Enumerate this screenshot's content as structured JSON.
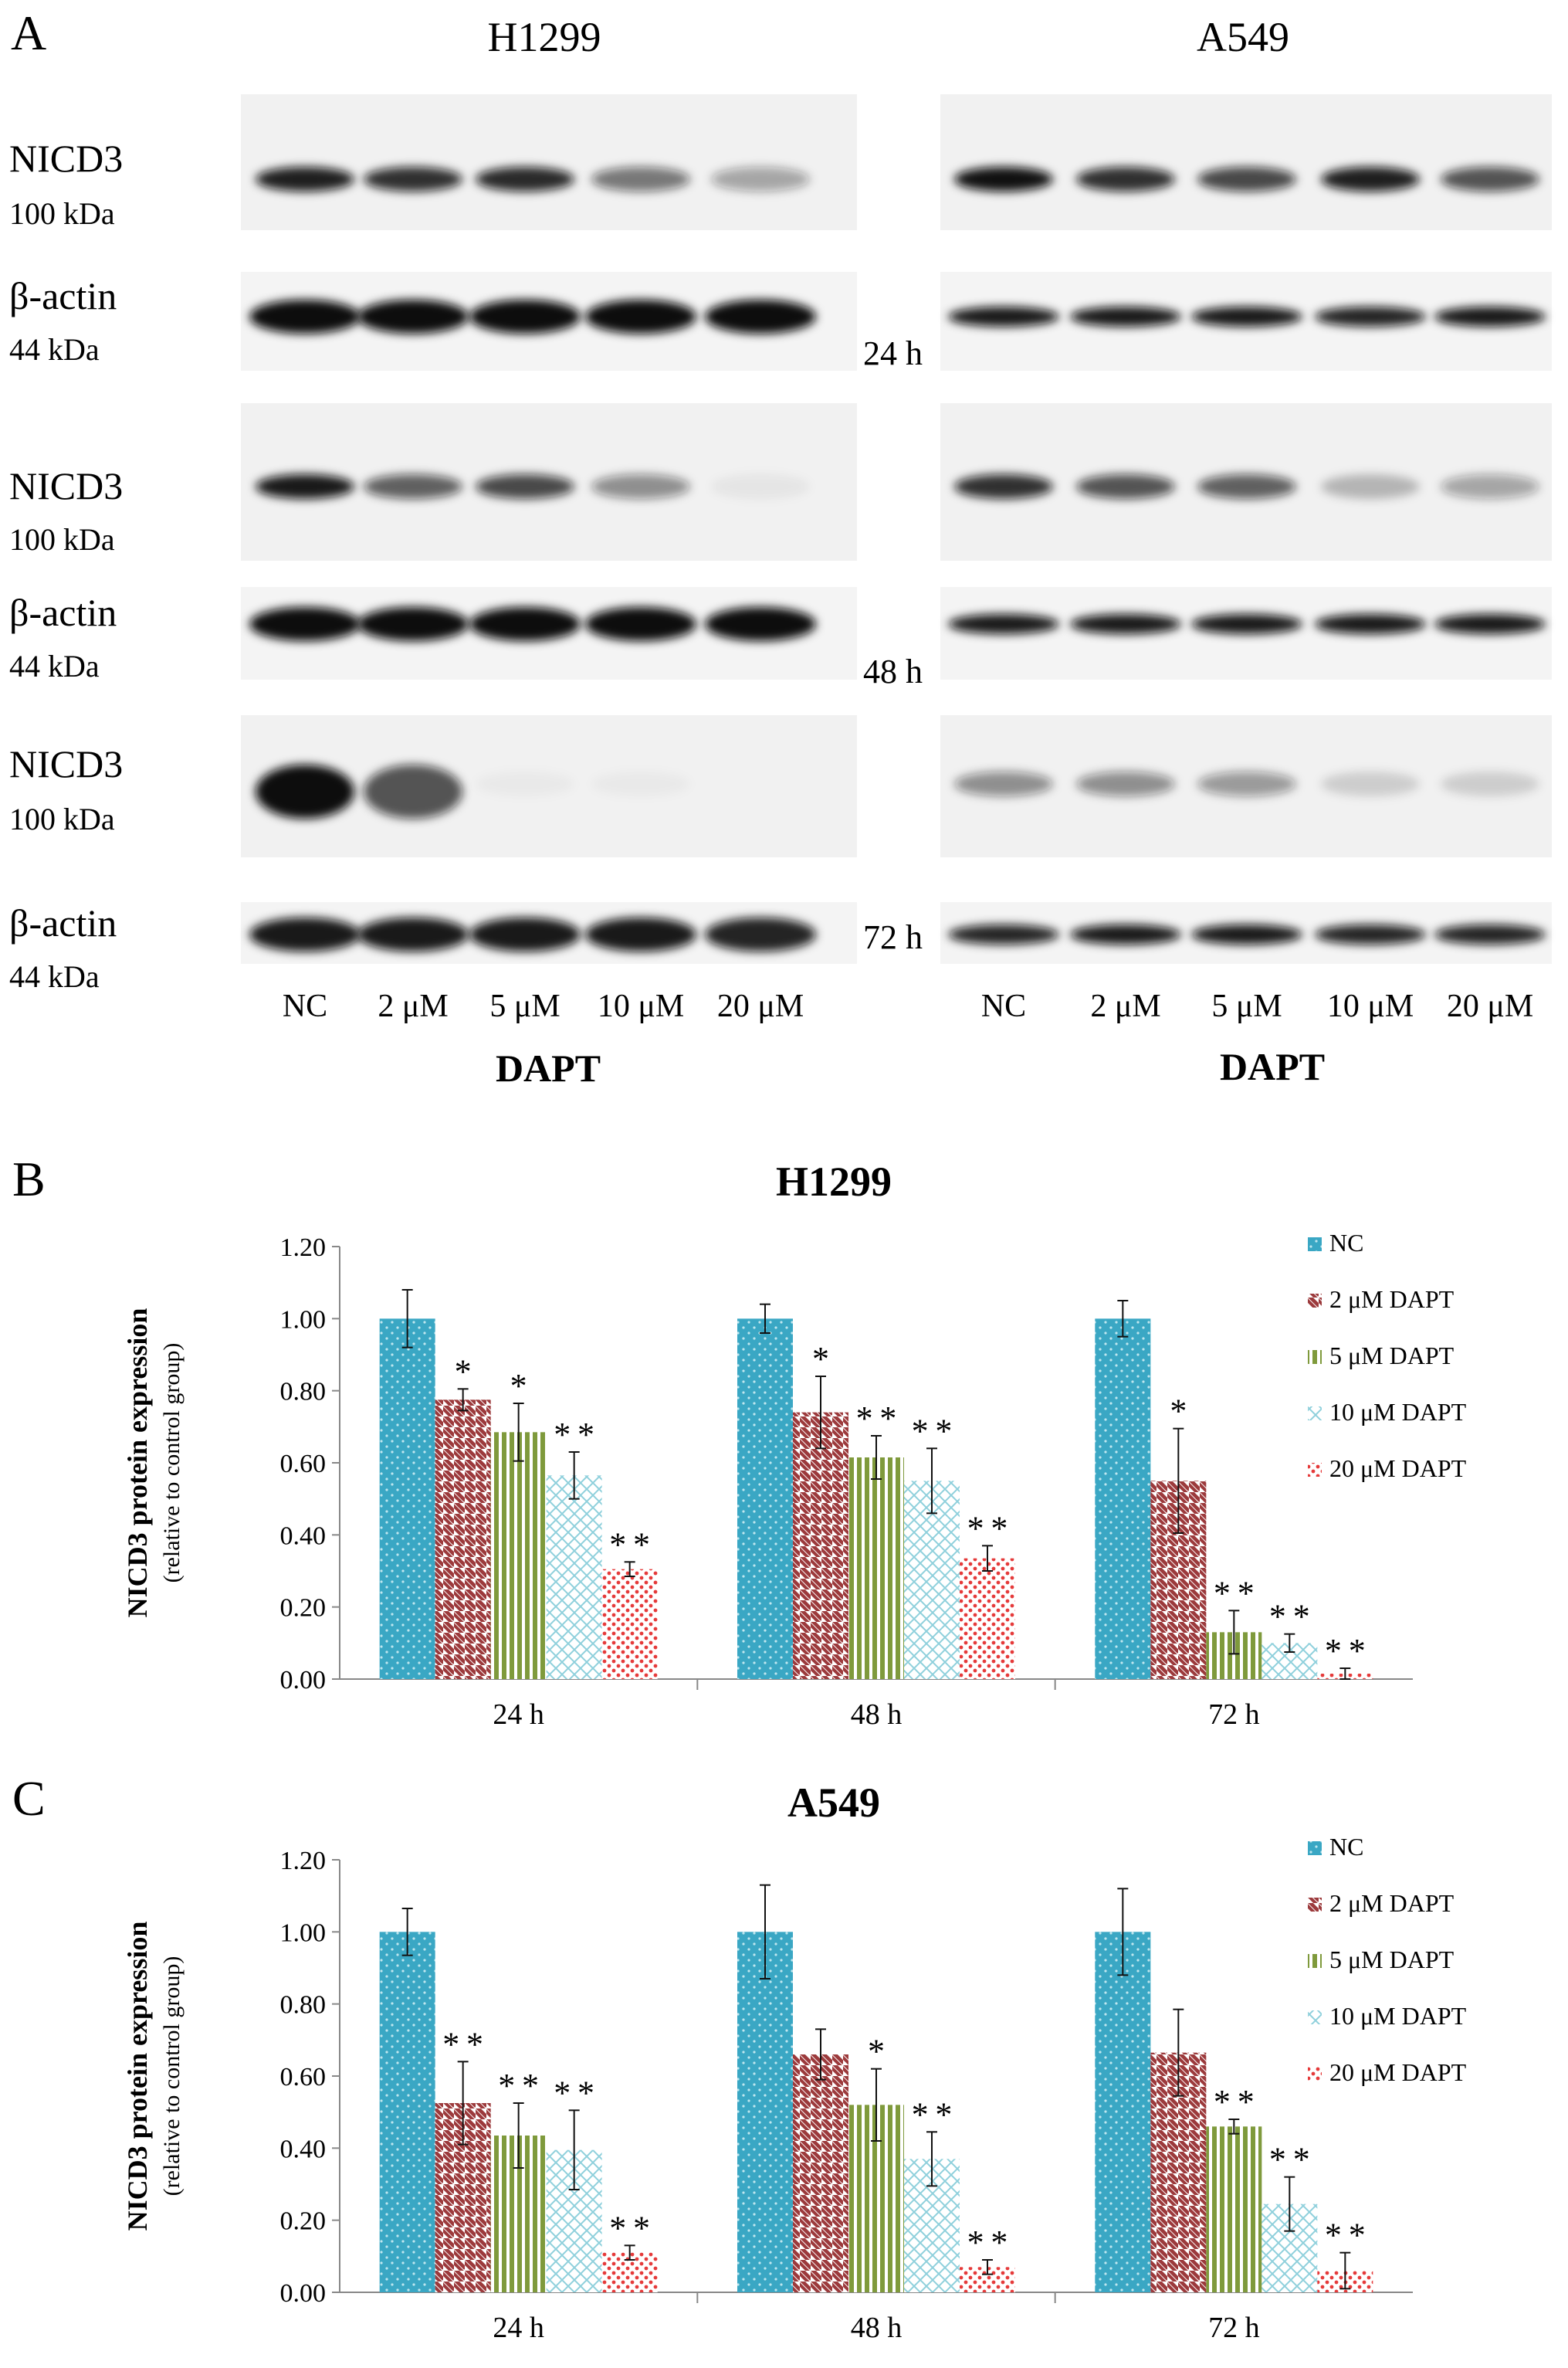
{
  "panel_a": {
    "letter": "A",
    "cell_lines": [
      "H1299",
      "A549"
    ],
    "rows": [
      {
        "time": "24 h",
        "target": "NICD3",
        "target_kda": "100 kDa",
        "control": "β-actin",
        "control_kda": "44 kDa"
      },
      {
        "time": "48 h",
        "target": "NICD3",
        "target_kda": "100 kDa",
        "control": "β-actin",
        "control_kda": "44 kDa"
      },
      {
        "time": "72 h",
        "target": "NICD3",
        "target_kda": "100 kDa",
        "control": "β-actin",
        "control_kda": "44 kDa"
      }
    ],
    "lanes": [
      "NC",
      "2 μM",
      "5 μM",
      "10 μM",
      "20 μM"
    ],
    "xtitle": "DAPT",
    "band_intensity": {
      "H1299": {
        "nicd3": [
          [
            0.92,
            0.85,
            0.88,
            0.55,
            0.35
          ],
          [
            0.95,
            0.65,
            0.75,
            0.45,
            0.05
          ],
          [
            1.0,
            0.7,
            0.03,
            0.03,
            0.0
          ]
        ],
        "actin": [
          [
            1.0,
            1.0,
            1.0,
            1.0,
            1.0
          ],
          [
            1.0,
            1.0,
            1.0,
            1.0,
            1.0
          ],
          [
            0.95,
            0.95,
            0.95,
            0.95,
            0.9
          ]
        ]
      },
      "A549": {
        "nicd3": [
          [
            0.98,
            0.85,
            0.75,
            0.92,
            0.7
          ],
          [
            0.85,
            0.7,
            0.65,
            0.25,
            0.35
          ],
          [
            0.45,
            0.45,
            0.4,
            0.15,
            0.15
          ]
        ],
        "actin": [
          [
            0.95,
            0.95,
            0.95,
            0.9,
            0.95
          ],
          [
            0.95,
            0.95,
            0.95,
            0.95,
            0.95
          ],
          [
            0.9,
            0.95,
            0.95,
            0.9,
            0.9
          ]
        ]
      }
    }
  },
  "chart_data": [
    {
      "type": "bar",
      "panel": "B",
      "title": "H1299",
      "ylabel": "NICD3 protein expression",
      "ylabel_sub": "(relative to control group)",
      "ylim": [
        0,
        1.2
      ],
      "yticks": [
        "0.00",
        "0.20",
        "0.40",
        "0.60",
        "0.80",
        "1.00",
        "1.20"
      ],
      "categories": [
        "24 h",
        "48 h",
        "72 h"
      ],
      "legend_position": "right",
      "grid": false,
      "series": [
        {
          "name": "NC",
          "values": [
            1.0,
            1.0,
            1.0
          ],
          "errors": [
            0.08,
            0.04,
            0.05
          ],
          "sig": [
            "",
            "",
            ""
          ],
          "color": "#3aa7c4",
          "pattern": "dots"
        },
        {
          "name": "2 μM DAPT",
          "values": [
            0.775,
            0.74,
            0.55
          ],
          "errors": [
            0.03,
            0.1,
            0.145
          ],
          "sig": [
            "*",
            "*",
            "*"
          ],
          "color": "#9c3a3c",
          "pattern": "diag"
        },
        {
          "name": "5 μM DAPT",
          "values": [
            0.685,
            0.615,
            0.13
          ],
          "errors": [
            0.08,
            0.06,
            0.06
          ],
          "sig": [
            "*",
            "**",
            "**"
          ],
          "color": "#7f9a3c",
          "pattern": "vert"
        },
        {
          "name": "10 μM DAPT",
          "values": [
            0.565,
            0.55,
            0.1
          ],
          "errors": [
            0.065,
            0.09,
            0.025
          ],
          "sig": [
            "**",
            "**",
            "**"
          ],
          "color": "#8fd0dc",
          "pattern": "cross"
        },
        {
          "name": "20 μM DAPT",
          "values": [
            0.305,
            0.335,
            0.015
          ],
          "errors": [
            0.02,
            0.035,
            0.015
          ],
          "sig": [
            "**",
            "**",
            "**"
          ],
          "color": "#e53a3a",
          "pattern": "redots"
        }
      ]
    },
    {
      "type": "bar",
      "panel": "C",
      "title": "A549",
      "ylabel": "NICD3 protein expression",
      "ylabel_sub": "(relative to control group)",
      "ylim": [
        0,
        1.2
      ],
      "yticks": [
        "0.00",
        "0.20",
        "0.40",
        "0.60",
        "0.80",
        "1.00",
        "1.20"
      ],
      "categories": [
        "24 h",
        "48 h",
        "72 h"
      ],
      "legend_position": "right",
      "grid": false,
      "series": [
        {
          "name": "NC",
          "values": [
            1.0,
            1.0,
            1.0
          ],
          "errors": [
            0.065,
            0.13,
            0.12
          ],
          "sig": [
            "",
            "",
            ""
          ],
          "color": "#3aa7c4",
          "pattern": "dots"
        },
        {
          "name": "2 μM DAPT",
          "values": [
            0.525,
            0.66,
            0.665
          ],
          "errors": [
            0.115,
            0.07,
            0.12
          ],
          "sig": [
            "**",
            "",
            ""
          ],
          "color": "#9c3a3c",
          "pattern": "diag"
        },
        {
          "name": "5 μM DAPT",
          "values": [
            0.435,
            0.52,
            0.46
          ],
          "errors": [
            0.09,
            0.1,
            0.02
          ],
          "sig": [
            "**",
            "*",
            "**"
          ],
          "color": "#7f9a3c",
          "pattern": "vert"
        },
        {
          "name": "10 μM DAPT",
          "values": [
            0.395,
            0.37,
            0.245
          ],
          "errors": [
            0.11,
            0.075,
            0.075
          ],
          "sig": [
            "**",
            "**",
            "**"
          ],
          "color": "#8fd0dc",
          "pattern": "cross"
        },
        {
          "name": "20 μM DAPT",
          "values": [
            0.11,
            0.07,
            0.06
          ],
          "errors": [
            0.02,
            0.02,
            0.05
          ],
          "sig": [
            "**",
            "**",
            "**"
          ],
          "color": "#e53a3a",
          "pattern": "redots"
        }
      ]
    }
  ]
}
